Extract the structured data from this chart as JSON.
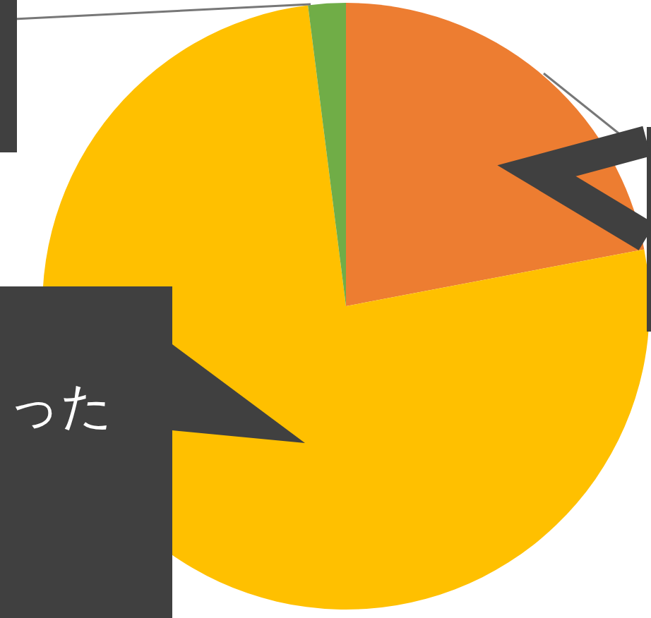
{
  "chart_data": {
    "type": "pie",
    "categories": [
      null,
      null,
      null
    ],
    "values": [
      22,
      76,
      2
    ],
    "colors": [
      "#ed7d31",
      "#ffc000",
      "#70ad47"
    ],
    "annotations": [
      "った"
    ]
  }
}
